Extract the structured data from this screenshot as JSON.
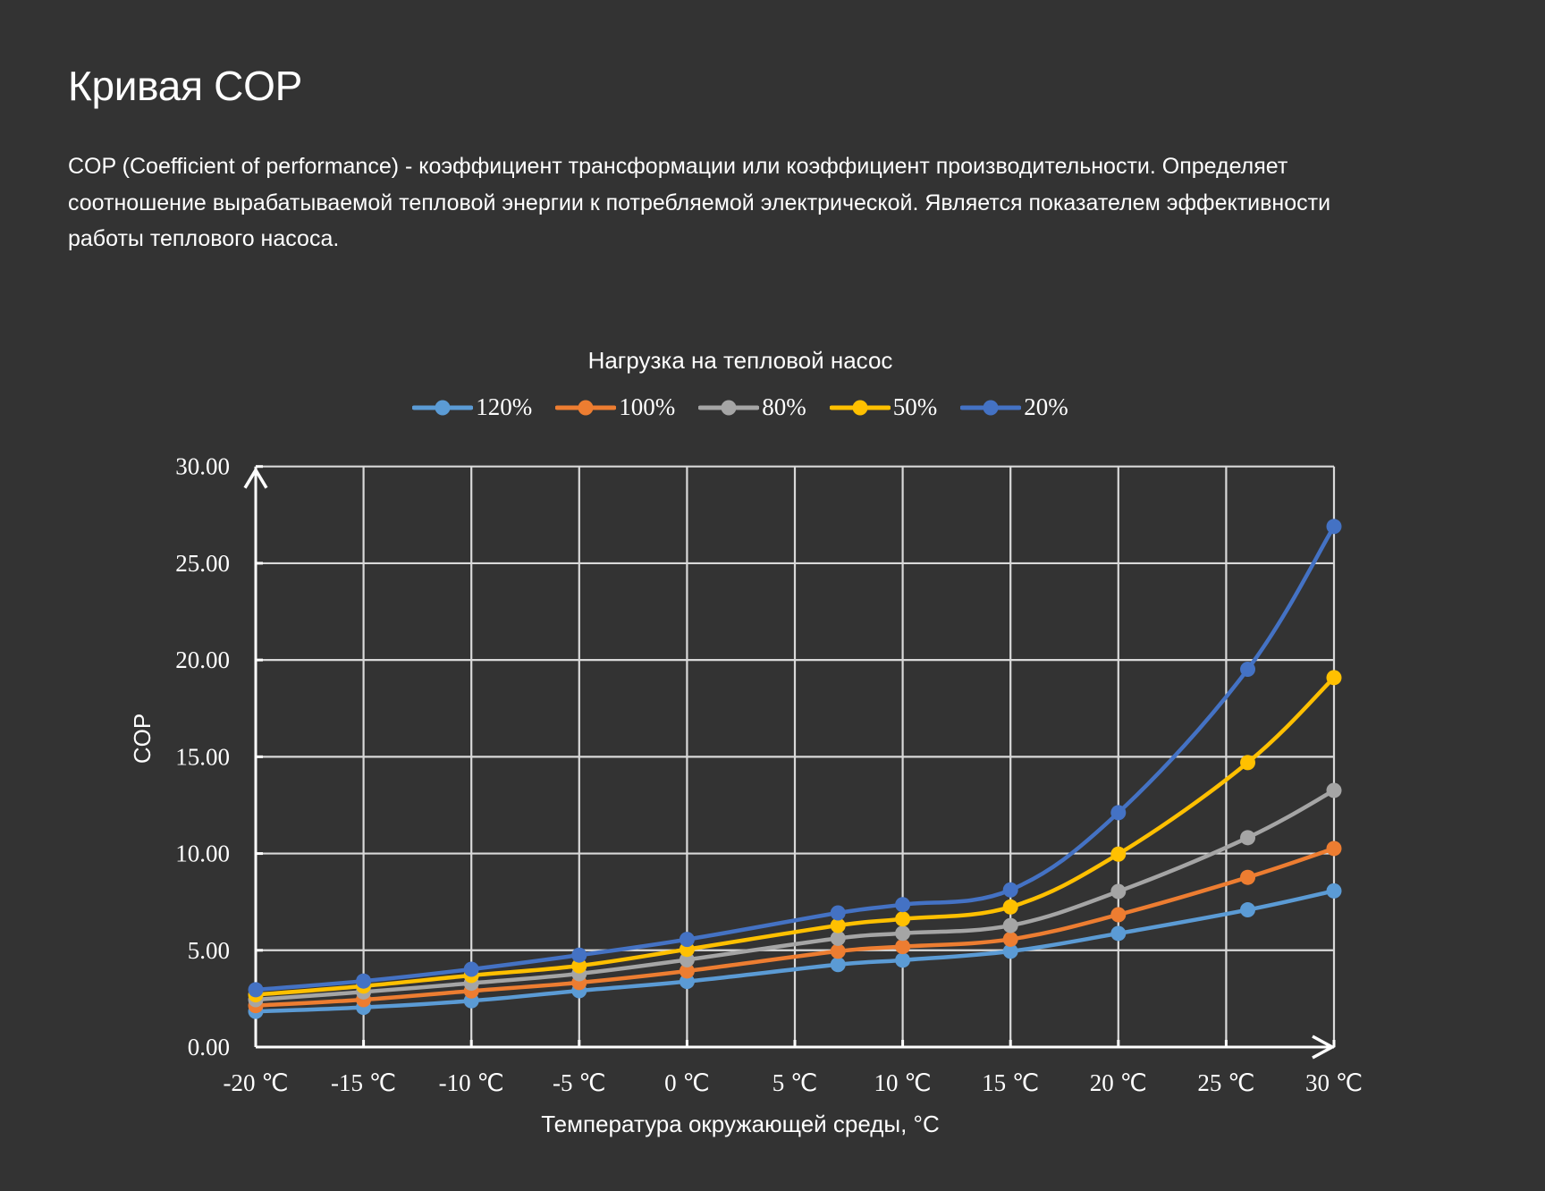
{
  "header": {
    "title": "Кривая COP",
    "description": "COP (Coefficient of performance) - коэффициент трансформации или коэффициент производительности. Определяет соотношение вырабатываемой тепловой энергии к потребляемой электрической. Является показателем эффективности работы теплового насоса."
  },
  "chart_data": {
    "type": "line",
    "title": "Нагрузка на тепловой насос",
    "xlabel": "Температура окружающей среды, °C",
    "ylabel": "COP",
    "xlim": [
      -20,
      30
    ],
    "ylim": [
      0,
      30
    ],
    "grid": true,
    "legend_position": "top-center",
    "x_ticks": [
      -20,
      -15,
      -10,
      -5,
      0,
      5,
      10,
      15,
      20,
      25,
      30
    ],
    "x_tick_labels": [
      "-20 ℃",
      "-15 ℃",
      "-10 ℃",
      "-5 ℃",
      "0 ℃",
      "5 ℃",
      "10 ℃",
      "15 ℃",
      "20 ℃",
      "25 ℃",
      "30 ℃"
    ],
    "y_ticks": [
      0,
      5,
      10,
      15,
      20,
      25,
      30
    ],
    "y_tick_labels": [
      "0.00",
      "5.00",
      "10.00",
      "15.00",
      "20.00",
      "25.00",
      "30.00"
    ],
    "x": [
      -20,
      -15,
      -10,
      -5,
      0,
      7,
      10,
      15,
      20,
      26,
      30
    ],
    "series": [
      {
        "name": "120%",
        "color": "#5b9bd5",
        "values": [
          1.84,
          2.05,
          2.39,
          2.91,
          3.39,
          4.26,
          4.49,
          4.95,
          5.87,
          7.09,
          8.07
        ]
      },
      {
        "name": "100%",
        "color": "#ed7d31",
        "values": [
          2.14,
          2.45,
          2.9,
          3.33,
          3.93,
          4.95,
          5.19,
          5.57,
          6.84,
          8.77,
          10.26
        ]
      },
      {
        "name": "80%",
        "color": "#a5a5a5",
        "values": [
          2.45,
          2.85,
          3.3,
          3.79,
          4.51,
          5.62,
          5.88,
          6.28,
          8.04,
          10.82,
          13.26
        ]
      },
      {
        "name": "50%",
        "color": "#ffc000",
        "values": [
          2.7,
          3.15,
          3.7,
          4.2,
          5.05,
          6.28,
          6.62,
          7.24,
          9.97,
          14.7,
          19.09
        ]
      },
      {
        "name": "20%",
        "color": "#4472c4",
        "values": [
          2.96,
          3.41,
          4.02,
          4.75,
          5.56,
          6.93,
          7.36,
          8.12,
          12.11,
          19.52,
          26.9
        ]
      }
    ]
  }
}
